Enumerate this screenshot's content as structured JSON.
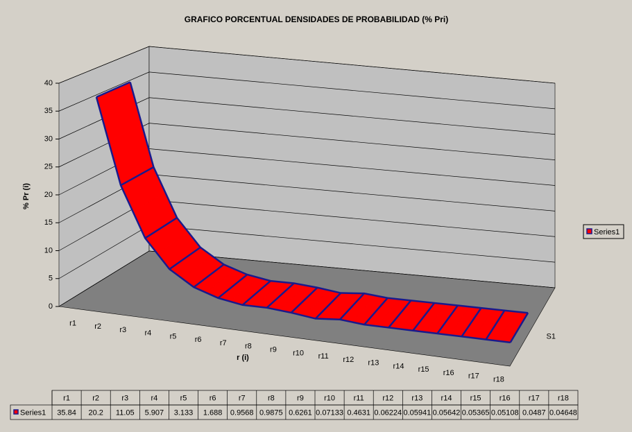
{
  "chart_data": {
    "type": "ribbon",
    "title": "GRAFICO PORCENTUAL DENSIDADES DE  PROBABILIDAD (% Pri)",
    "y_label": "% Pr (i)",
    "x_label": "r (i)",
    "depth_categories": [
      "S1"
    ],
    "categories": [
      "r1",
      "r2",
      "r3",
      "r4",
      "r5",
      "r6",
      "r7",
      "r8",
      "r9",
      "r10",
      "r11",
      "r12",
      "r13",
      "r14",
      "r15",
      "r16",
      "r17",
      "r18"
    ],
    "series": [
      {
        "name": "Series1",
        "color": "#ff0000",
        "values": [
          35.84,
          20.2,
          11.05,
          5.907,
          3.133,
          1.688,
          0.9568,
          0.9875,
          0.6261,
          0.07133,
          0.4631,
          0.06224,
          0.05941,
          0.05642,
          0.05365,
          0.05108,
          0.0487,
          0.04648
        ]
      }
    ],
    "ylim": [
      0,
      40
    ],
    "yticks": [
      0,
      5,
      10,
      15,
      20,
      25,
      30,
      35,
      40
    ],
    "grid": true,
    "legend": "right",
    "data_table": true
  }
}
